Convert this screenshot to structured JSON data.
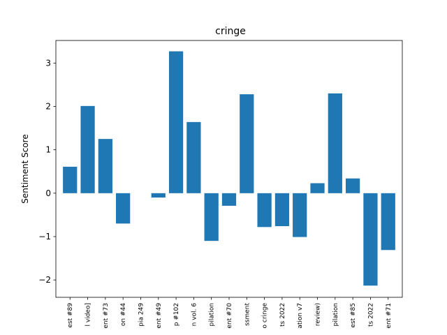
{
  "chart_data": {
    "type": "bar",
    "title": "cringe",
    "xlabel": "",
    "ylabel": "Sentiment Score",
    "ylim": [
      -2.4,
      3.52
    ],
    "yticks": [
      -2,
      -1,
      0,
      1,
      2,
      3
    ],
    "ytick_labels": [
      "−2",
      "−1",
      "0",
      "1",
      "2",
      "3"
    ],
    "grid": false,
    "categories": [
      "est #89",
      "l video]",
      "ent #73",
      "on #44",
      "pia 249",
      "ent #49",
      "p #102",
      "n vol. 6",
      "pilation",
      "ent #70",
      "ssment",
      "o cringe",
      "ts 2022",
      "ation v7",
      "review)",
      "pilation",
      "est #85",
      "ts 2022",
      "ent #71"
    ],
    "values": [
      0.61,
      2.01,
      1.25,
      -0.7,
      0.0,
      -0.1,
      3.27,
      1.64,
      -1.1,
      -0.29,
      2.28,
      -0.78,
      -0.76,
      -1.01,
      0.23,
      2.3,
      0.34,
      -2.13,
      -1.31
    ],
    "colors": {
      "bar": "#1f77b4"
    }
  }
}
